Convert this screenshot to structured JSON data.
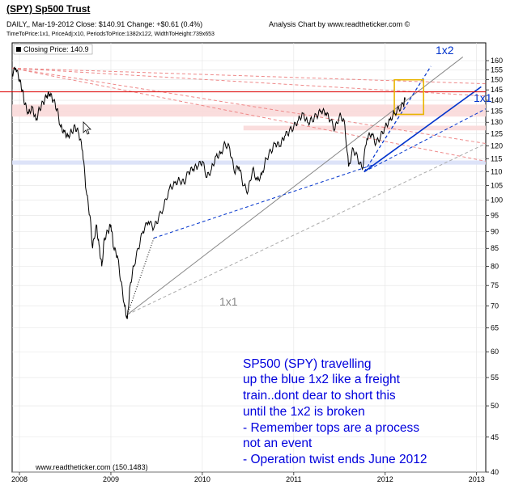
{
  "header": {
    "title": "(SPY) Sp500 Trust",
    "line1": "DAILY,, Mar-19-2012  Close: $140.91  Change: +$0.61  (0.4%)",
    "line2": "TimeToPrice:1x1, PriceAdj:x10, PeriodsToPrice:1382x122, WidthToHeight:739x653",
    "analysis": "Analysis Chart by www.readtheticker.com ©"
  },
  "legend": {
    "label": "Closing Price: 140.9"
  },
  "footer": {
    "credit": "www.readtheticker.com  (150.1483)"
  },
  "annotations": {
    "gann_1x2": "1x2",
    "gann_1x1_right": "1x1",
    "gann_1x1_mid": "1x1",
    "note_lines": [
      "SP500 (SPY) travelling",
      "up the blue 1x2 like a freight",
      "train..dont dear to short this",
      "until the 1x2 is broken",
      "- Remember tops are a process",
      "not an event",
      "- Operation twist ends June 2012"
    ]
  },
  "colors": {
    "price": "#000000",
    "horizontal_line": "#dd0000",
    "resistance_zone": "#f9d9d9",
    "support_zone": "#d9e0f7",
    "blue_trend": "#0033cc",
    "gray_line": "#888888",
    "red_dash": "#ee8888",
    "box": "#e8b400",
    "note": "#0000dd"
  },
  "chart_data": {
    "type": "line",
    "title": "(SPY) Sp500 Trust",
    "ylabel": "",
    "xlabel": "",
    "y_scale": "log",
    "ylim": [
      40,
      160
    ],
    "xlim": [
      2007.92,
      2013.1
    ],
    "y_ticks": [
      40,
      45,
      50,
      55,
      60,
      65,
      70,
      75,
      80,
      85,
      90,
      95,
      100,
      105,
      110,
      115,
      120,
      125,
      130,
      135,
      140,
      145,
      150,
      155,
      160
    ],
    "x_ticks": [
      {
        "t": 2008,
        "label": "2008"
      },
      {
        "t": 2009,
        "label": "2009"
      },
      {
        "t": 2010,
        "label": "2010"
      },
      {
        "t": 2011,
        "label": "2011"
      },
      {
        "t": 2012,
        "label": "2012"
      },
      {
        "t": 2013,
        "label": "2013"
      }
    ],
    "grid": true,
    "last_close": 140.91,
    "series": [
      {
        "name": "Closing Price",
        "points": [
          [
            2007.92,
            153
          ],
          [
            2007.96,
            156
          ],
          [
            2008.0,
            150
          ],
          [
            2008.03,
            145
          ],
          [
            2008.06,
            138
          ],
          [
            2008.1,
            134
          ],
          [
            2008.14,
            137
          ],
          [
            2008.18,
            131
          ],
          [
            2008.22,
            136
          ],
          [
            2008.26,
            139
          ],
          [
            2008.3,
            142
          ],
          [
            2008.33,
            143
          ],
          [
            2008.37,
            140
          ],
          [
            2008.41,
            136
          ],
          [
            2008.45,
            128
          ],
          [
            2008.49,
            126
          ],
          [
            2008.53,
            124
          ],
          [
            2008.57,
            126
          ],
          [
            2008.61,
            128
          ],
          [
            2008.65,
            125
          ],
          [
            2008.69,
            118
          ],
          [
            2008.73,
            103
          ],
          [
            2008.77,
            95
          ],
          [
            2008.8,
            85
          ],
          [
            2008.84,
            92
          ],
          [
            2008.87,
            86
          ],
          [
            2008.9,
            80
          ],
          [
            2008.93,
            88
          ],
          [
            2008.97,
            90
          ],
          [
            2009.0,
            92
          ],
          [
            2009.03,
            85
          ],
          [
            2009.07,
            83
          ],
          [
            2009.11,
            76
          ],
          [
            2009.15,
            70
          ],
          [
            2009.18,
            67
          ],
          [
            2009.21,
            75
          ],
          [
            2009.25,
            80
          ],
          [
            2009.3,
            85
          ],
          [
            2009.35,
            90
          ],
          [
            2009.41,
            93
          ],
          [
            2009.47,
            91
          ],
          [
            2009.52,
            94
          ],
          [
            2009.58,
            98
          ],
          [
            2009.64,
            104
          ],
          [
            2009.7,
            106
          ],
          [
            2009.75,
            107
          ],
          [
            2009.8,
            106
          ],
          [
            2009.85,
            110
          ],
          [
            2009.9,
            111
          ],
          [
            2009.95,
            112
          ],
          [
            2010.0,
            114
          ],
          [
            2010.05,
            108
          ],
          [
            2010.1,
            111
          ],
          [
            2010.15,
            116
          ],
          [
            2010.2,
            117
          ],
          [
            2010.25,
            121
          ],
          [
            2010.3,
            119
          ],
          [
            2010.35,
            110
          ],
          [
            2010.4,
            112
          ],
          [
            2010.45,
            105
          ],
          [
            2010.5,
            103
          ],
          [
            2010.55,
            111
          ],
          [
            2010.6,
            107
          ],
          [
            2010.65,
            109
          ],
          [
            2010.7,
            115
          ],
          [
            2010.75,
            118
          ],
          [
            2010.8,
            121
          ],
          [
            2010.85,
            120
          ],
          [
            2010.9,
            124
          ],
          [
            2010.95,
            126
          ],
          [
            2011.0,
            128
          ],
          [
            2011.05,
            131
          ],
          [
            2011.1,
            134
          ],
          [
            2011.15,
            130
          ],
          [
            2011.2,
            131
          ],
          [
            2011.25,
            133
          ],
          [
            2011.3,
            135
          ],
          [
            2011.35,
            134
          ],
          [
            2011.4,
            131
          ],
          [
            2011.45,
            127
          ],
          [
            2011.5,
            133
          ],
          [
            2011.55,
            131
          ],
          [
            2011.6,
            112
          ],
          [
            2011.65,
            119
          ],
          [
            2011.7,
            115
          ],
          [
            2011.75,
            111
          ],
          [
            2011.8,
            123
          ],
          [
            2011.85,
            125
          ],
          [
            2011.9,
            121
          ],
          [
            2011.95,
            124
          ],
          [
            2012.0,
            128
          ],
          [
            2012.05,
            131
          ],
          [
            2012.1,
            134
          ],
          [
            2012.15,
            136
          ],
          [
            2012.2,
            138
          ],
          [
            2012.22,
            140.9
          ]
        ]
      }
    ],
    "overlays": {
      "horizontal_line": 144,
      "resistance_zone": [
        132.5,
        138
      ],
      "mid_zone": [
        126.5,
        128.5
      ],
      "support_zone": [
        112.7,
        114.3
      ],
      "blue_1x1": [
        [
          2011.77,
          110
        ],
        [
          2013.05,
          146.5
        ]
      ],
      "blue_1x2": [
        [
          2011.77,
          110
        ],
        [
          2012.5,
          157
        ]
      ],
      "blue_dashed_1": [
        [
          2009.47,
          88
        ],
        [
          2011.9,
          113
        ]
      ],
      "blue_dashed_2": [
        [
          2011.77,
          110
        ],
        [
          2013.1,
          136
        ]
      ],
      "gray_1x1": [
        [
          2009.18,
          68
        ],
        [
          2012.85,
          162
        ]
      ],
      "gray_dashed": [
        [
          2009.18,
          68
        ],
        [
          2013.1,
          121
        ]
      ],
      "red_dashed": [
        [
          [
            2007.92,
            156
          ],
          [
            2013.1,
            148
          ]
        ],
        [
          [
            2007.92,
            156
          ],
          [
            2013.1,
            142
          ]
        ],
        [
          [
            2007.92,
            156
          ],
          [
            2013.1,
            121
          ]
        ],
        [
          [
            2007.92,
            156
          ],
          [
            2013.1,
            114
          ]
        ]
      ],
      "dotted_lines": [
        [
          [
            2009.18,
            68
          ],
          [
            2009.47,
            88
          ]
        ]
      ],
      "box": {
        "t0": 2012.1,
        "t1": 2012.42,
        "y0": 133.5,
        "y1": 150
      }
    }
  }
}
